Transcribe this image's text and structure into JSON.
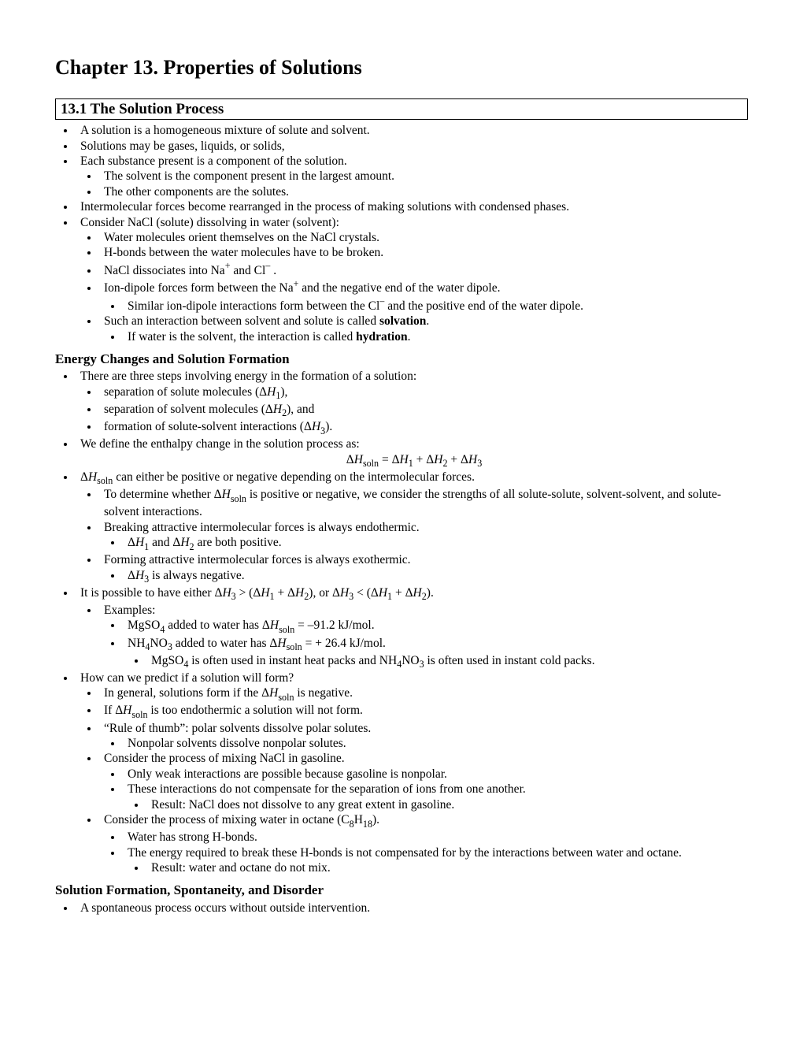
{
  "title": "Chapter 13. Properties of Solutions",
  "section": "13.1 The Solution Process",
  "b1": "A solution is a homogeneous mixture of solute and solvent.",
  "b2": "Solutions may be gases, liquids, or solids,",
  "b3": "Each substance present is a component of the solution.",
  "b3a": "The solvent is the component present in the largest amount.",
  "b3b": "The other components are the solutes.",
  "b4": "Intermolecular forces become rearranged in the process of making solutions with condensed phases.",
  "b5": "Consider NaCl (solute) dissolving in water (solvent):",
  "b5a": "Water molecules orient themselves on the NaCl crystals.",
  "b5b": "H-bonds between the water molecules have to be broken.",
  "b5e": " and the negative end of the water dipole.",
  "b5e1a": "Similar ion-dipole interactions form between the Cl",
  "b5e1b": " and the positive end of the water dipole.",
  "b5f": "Such an interaction between solvent and solute is called ",
  "b5f_bold": "solvation",
  "b5f1": "If water is the solvent, the interaction is called ",
  "b5f1_bold": "hydration",
  "sub1": "Energy Changes and Solution Formation",
  "e1": "There are three steps involving energy in the formation of a solution:",
  "e2": "We define the enthalpy change in the solution process as:",
  "e3": " can either be positive or negative depending on the intermolecular forces.",
  "e3a": " is positive or negative, we consider the strengths of all solute-solute, solvent-solvent, and solute-solvent interactions.",
  "e3b": "Breaking attractive intermolecular forces is always endothermic.",
  "e3c": "Forming attractive intermolecular forces is always exothermic.",
  "e4a": "Examples:",
  "h1": "How can we predict if a solution will form?",
  "h1b": " is too endothermic a solution will not form.",
  "h1c": "“Rule of thumb”: polar solvents dissolve polar solutes.",
  "h1c1": "Nonpolar solvents dissolve nonpolar solutes.",
  "h1d": "Consider the process of mixing NaCl in gasoline.",
  "h1d1": "Only weak interactions are possible because gasoline is nonpolar.",
  "h1d2": "These interactions do not compensate for the separation of ions from one another.",
  "h1d2a": "Result: NaCl does not dissolve to any great extent in gasoline.",
  "h1e1": "Water has strong H-bonds.",
  "h1e2": "The energy required to break these H-bonds is not compensated for by the interactions between water and octane.",
  "h1e2a": "Result: water and octane do not mix.",
  "sub2": "Solution Formation, Spontaneity, and Disorder",
  "s1": "A spontaneous process occurs without outside intervention."
}
